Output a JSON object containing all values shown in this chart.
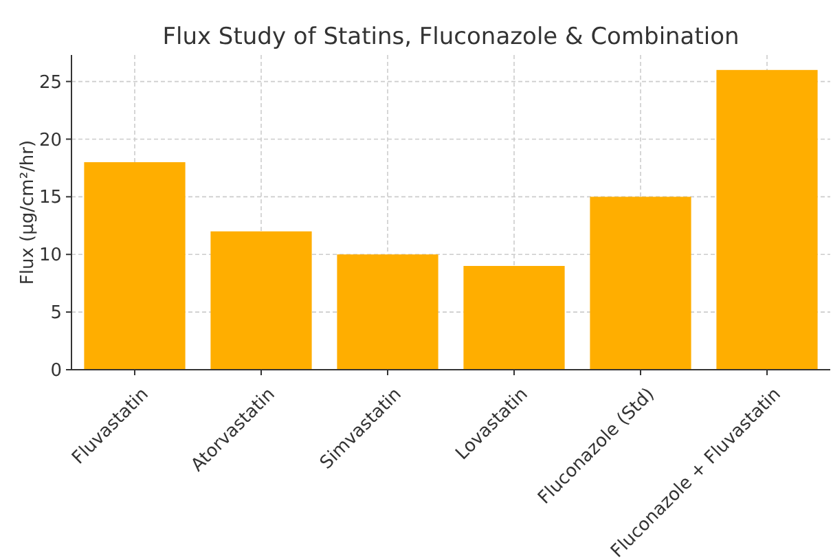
{
  "chart_data": {
    "type": "bar",
    "title": "Flux Study of Statins, Fluconazole & Combination",
    "ylabel": "Flux (µg/cm²/hr)",
    "categories": [
      "Fluvastatin",
      "Atorvastatin",
      "Simvastatin",
      "Lovastatin",
      "Fluconazole (Std)",
      "Fluconazole + Fluvastatin"
    ],
    "values": [
      18,
      12,
      10,
      9,
      15,
      26
    ],
    "color": "#ffae00",
    "ylim": [
      0,
      27.3
    ],
    "yticks": [
      0,
      5,
      10,
      15,
      20,
      25
    ],
    "grid": true
  }
}
